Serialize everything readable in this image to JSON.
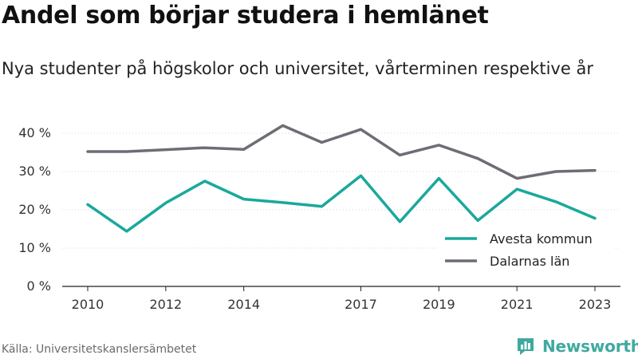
{
  "title": "Andel som börjar studera i hemlänet",
  "subtitle": "Nya studenter på högskolor och universitet, vårterminen respektive år",
  "source": "Källa: Universitetskanslersämbetet",
  "brand": {
    "name": "Newsworthy",
    "icon": "bar-chart-badge-icon",
    "color": "#3fa99f"
  },
  "chart_data": {
    "type": "line",
    "x": [
      2010,
      2011,
      2012,
      2013,
      2014,
      2015,
      2016,
      2017,
      2018,
      2019,
      2020,
      2021,
      2022,
      2023
    ],
    "x_ticks": [
      2010,
      2012,
      2014,
      2017,
      2019,
      2021,
      2023
    ],
    "y_ticks": [
      0,
      10,
      20,
      30,
      40
    ],
    "y_tick_labels": [
      "0 %",
      "10 %",
      "20 %",
      "30 %",
      "40 %"
    ],
    "ylim": [
      0,
      45
    ],
    "grid": true,
    "legend_position": "bottom-right",
    "series": [
      {
        "name": "Avesta kommun",
        "color": "#1aa89c",
        "values": [
          21.4,
          14.4,
          21.8,
          27.5,
          22.8,
          21.9,
          20.9,
          28.9,
          16.9,
          28.2,
          17.2,
          25.4,
          22.1,
          17.8
        ]
      },
      {
        "name": "Dalarnas län",
        "color": "#6e6d75",
        "values": [
          35.2,
          35.2,
          35.7,
          36.2,
          35.8,
          42.0,
          37.6,
          41.0,
          34.3,
          36.9,
          33.4,
          28.2,
          30.0,
          30.3
        ]
      }
    ]
  }
}
